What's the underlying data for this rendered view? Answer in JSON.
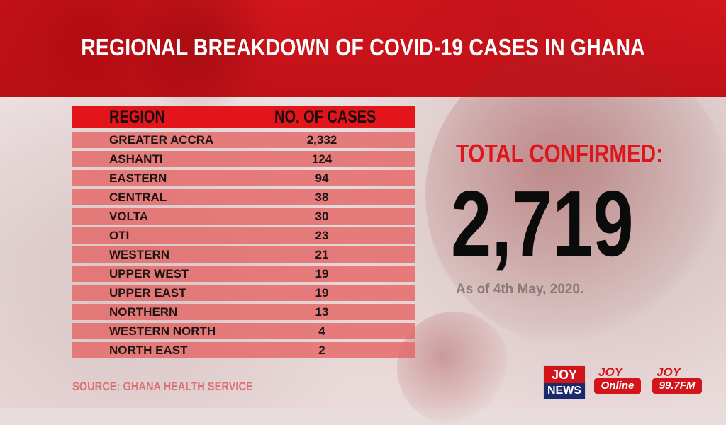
{
  "title": "REGIONAL BREAKDOWN OF COVID-19 CASES IN GHANA",
  "table": {
    "headers": {
      "region": "REGION",
      "cases": "NO. OF CASES"
    },
    "rows": [
      {
        "region": "GREATER ACCRA",
        "cases": "2,332"
      },
      {
        "region": "ASHANTI",
        "cases": "124"
      },
      {
        "region": "EASTERN",
        "cases": "94"
      },
      {
        "region": "CENTRAL",
        "cases": "38"
      },
      {
        "region": "VOLTA",
        "cases": "30"
      },
      {
        "region": "OTI",
        "cases": "23"
      },
      {
        "region": "WESTERN",
        "cases": "21"
      },
      {
        "region": "UPPER WEST",
        "cases": "19"
      },
      {
        "region": "UPPER EAST",
        "cases": "19"
      },
      {
        "region": "NORTHERN",
        "cases": "13"
      },
      {
        "region": "WESTERN NORTH",
        "cases": "4"
      },
      {
        "region": "NORTH EAST",
        "cases": "2"
      }
    ]
  },
  "total": {
    "label": "TOTAL CONFIRMED:",
    "value": "2,719",
    "as_of": "As of 4th May, 2020."
  },
  "source": "SOURCE: GHANA HEALTH SERVICE",
  "logos": {
    "joy_news": {
      "top": "JOY",
      "bottom": "NEWS"
    },
    "joy_online": {
      "top": "JOY",
      "bottom": "Online"
    },
    "joy_fm": {
      "top": "JOY",
      "bottom": "99.7FM"
    }
  },
  "colors": {
    "banner_red": "#d2161d",
    "header_red": "#e4141b",
    "row_pink": "#e46666",
    "total_label": "#e0141b",
    "source_text": "#d97272"
  }
}
